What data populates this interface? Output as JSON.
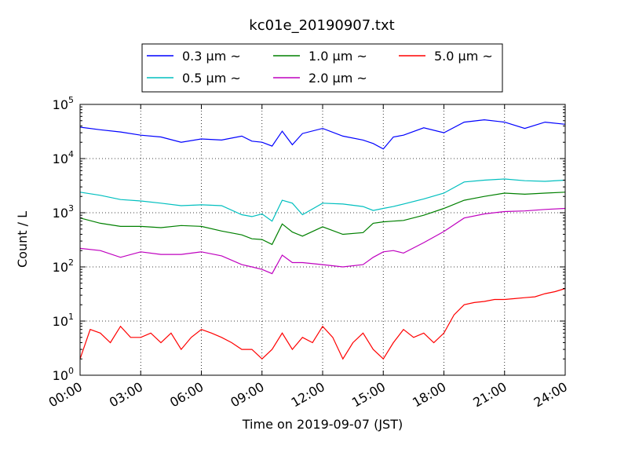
{
  "chart_data": {
    "type": "line",
    "title": "kc01e_20190907.txt",
    "xlabel": "Time on 2019-09-07 (JST)",
    "ylabel": "Count / L",
    "yscale": "log",
    "xlim": [
      0,
      24
    ],
    "ylim": [
      1,
      100000
    ],
    "grid": true,
    "legend_position": "top",
    "x_ticks": [
      "00:00",
      "03:00",
      "06:00",
      "09:00",
      "12:00",
      "15:00",
      "18:00",
      "21:00",
      "24:00"
    ],
    "y_ticks": [
      {
        "base": "10",
        "exp": "0"
      },
      {
        "base": "10",
        "exp": "1"
      },
      {
        "base": "10",
        "exp": "2"
      },
      {
        "base": "10",
        "exp": "3"
      },
      {
        "base": "10",
        "exp": "4"
      },
      {
        "base": "10",
        "exp": "5"
      }
    ],
    "series": [
      {
        "name": "0.3 μm ~",
        "color": "#0000ff",
        "x": [
          0,
          1,
          2,
          3,
          4,
          5,
          6,
          7,
          8,
          8.5,
          9,
          9.5,
          10,
          10.5,
          11,
          12,
          13,
          14,
          14.5,
          15,
          15.5,
          16,
          17,
          18,
          19,
          20,
          21,
          22,
          23,
          24
        ],
        "y": [
          38000,
          34000,
          31000,
          27000,
          25000,
          20000,
          23000,
          22000,
          26000,
          21000,
          20000,
          17000,
          32000,
          18000,
          29000,
          36000,
          26000,
          22000,
          19000,
          15000,
          25000,
          27000,
          37000,
          30000,
          47000,
          52000,
          47000,
          36000,
          47000,
          43000
        ]
      },
      {
        "name": "0.5 μm ~",
        "color": "#00bfbf",
        "x": [
          0,
          1,
          2,
          3,
          4,
          5,
          6,
          7,
          8,
          8.5,
          9,
          9.5,
          10,
          10.5,
          11,
          12,
          13,
          14,
          14.5,
          15,
          15.5,
          16,
          17,
          18,
          19,
          20,
          21,
          22,
          23,
          24
        ],
        "y": [
          2400,
          2100,
          1750,
          1650,
          1500,
          1350,
          1400,
          1350,
          920,
          850,
          950,
          700,
          1700,
          1500,
          920,
          1500,
          1450,
          1300,
          1100,
          1200,
          1300,
          1450,
          1800,
          2300,
          3700,
          4000,
          4200,
          3900,
          3800,
          4000
        ]
      },
      {
        "name": "1.0 μm ~",
        "color": "#008000",
        "x": [
          0,
          1,
          2,
          3,
          4,
          5,
          6,
          7,
          8,
          8.5,
          9,
          9.5,
          10,
          10.5,
          11,
          12,
          13,
          14,
          14.5,
          15,
          15.5,
          16,
          17,
          18,
          19,
          20,
          21,
          22,
          23,
          24
        ],
        "y": [
          800,
          640,
          560,
          560,
          530,
          580,
          560,
          460,
          390,
          330,
          320,
          260,
          620,
          440,
          370,
          550,
          400,
          430,
          640,
          680,
          700,
          720,
          900,
          1200,
          1700,
          2000,
          2300,
          2200,
          2300,
          2400
        ]
      },
      {
        "name": "2.0 μm ~",
        "color": "#bf00bf",
        "x": [
          0,
          1,
          2,
          3,
          4,
          5,
          6,
          7,
          8,
          8.5,
          9,
          9.5,
          10,
          10.5,
          11,
          12,
          13,
          14,
          14.5,
          15,
          15.5,
          16,
          17,
          18,
          19,
          20,
          21,
          22,
          23,
          24
        ],
        "y": [
          220,
          200,
          150,
          190,
          170,
          170,
          190,
          160,
          110,
          100,
          90,
          75,
          165,
          120,
          120,
          110,
          100,
          110,
          150,
          190,
          200,
          180,
          280,
          450,
          800,
          950,
          1050,
          1080,
          1150,
          1200
        ]
      },
      {
        "name": "5.0 μm ~",
        "color": "#ff0000",
        "x": [
          0,
          0.5,
          1,
          1.5,
          2,
          2.5,
          3,
          3.5,
          4,
          4.5,
          5,
          5.5,
          6,
          6.5,
          7,
          7.5,
          8,
          8.5,
          9,
          9.5,
          10,
          10.5,
          11,
          11.5,
          12,
          12.5,
          13,
          13.5,
          14,
          14.5,
          15,
          15.5,
          16,
          16.5,
          17,
          17.5,
          18,
          18.5,
          19,
          19.5,
          20,
          20.5,
          21,
          21.5,
          22,
          22.5,
          23,
          23.5,
          24
        ],
        "y": [
          2,
          7,
          6,
          4,
          8,
          5,
          5,
          6,
          4,
          6,
          3,
          5,
          7,
          6,
          5,
          4,
          3,
          3,
          2,
          3,
          6,
          3,
          5,
          4,
          8,
          5,
          2,
          4,
          6,
          3,
          2,
          4,
          7,
          5,
          6,
          4,
          6,
          13,
          20,
          22,
          23,
          25,
          25,
          26,
          27,
          28,
          32,
          35,
          40
        ]
      }
    ]
  }
}
